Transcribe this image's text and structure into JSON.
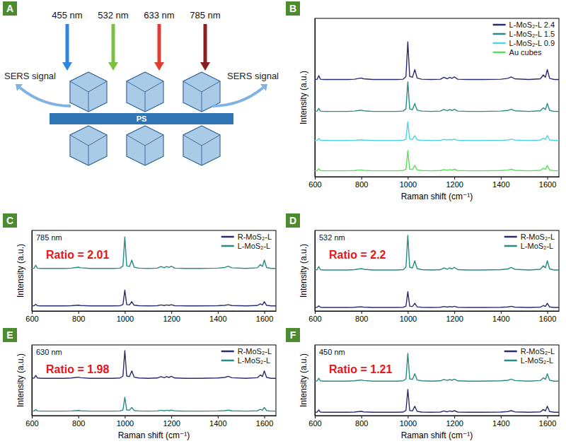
{
  "diagram": {
    "panel": "A",
    "wavelengths": [
      "455 nm",
      "532 nm",
      "633 nm",
      "785 nm"
    ],
    "signal_labels": [
      "SERS signal",
      "SERS signal"
    ],
    "substrate": "PS"
  },
  "chart_data": [
    {
      "type": "line",
      "panel": "B",
      "x_label": "Raman shift (cm⁻¹)",
      "y_label": "Intensity (a.u.)",
      "x": [
        600,
        610,
        617,
        624,
        640,
        660,
        700,
        740,
        770,
        790,
        800,
        810,
        850,
        900,
        950,
        980,
        992,
        1000,
        1008,
        1020,
        1030,
        1040,
        1060,
        1100,
        1140,
        1155,
        1170,
        1180,
        1190,
        1200,
        1215,
        1260,
        1320,
        1400,
        1430,
        1445,
        1460,
        1520,
        1570,
        1583,
        1592,
        1600,
        1610,
        1630,
        1650
      ],
      "xlim": [
        600,
        1650
      ],
      "xticks": [
        600,
        800,
        1000,
        1200,
        1400,
        1600
      ],
      "ylim": [
        0,
        115
      ],
      "tick_labels": "x",
      "legend": "upper right",
      "series": [
        {
          "name": "L-MoS₂-L 2.4",
          "color": "#2b2c6e",
          "values": [
            70.6,
            70.8,
            73.4,
            70.8,
            70.6,
            70.6,
            70.6,
            70.6,
            70.8,
            71.4,
            71.7,
            71.1,
            70.6,
            70.6,
            70.6,
            70.8,
            72.8,
            98,
            72.8,
            72.2,
            77.8,
            71.7,
            70.8,
            70.6,
            70.8,
            72.2,
            71.1,
            72.2,
            71.4,
            72.5,
            70.8,
            70.6,
            70.6,
            70.8,
            71.4,
            72.5,
            71.1,
            70.6,
            71.1,
            73.9,
            72.2,
            77.8,
            71.4,
            70.6,
            70.6
          ]
        },
        {
          "name": "L-MoS₂-L 1.5",
          "color": "#2a8a84",
          "values": [
            47.4,
            47.7,
            49.6,
            47.7,
            47.4,
            47.4,
            47.4,
            47.4,
            47.7,
            48.1,
            48.3,
            47.9,
            47.4,
            47.4,
            47.4,
            47.7,
            49.2,
            69,
            49.2,
            48.8,
            53.2,
            48.3,
            47.7,
            47.4,
            47.7,
            48.8,
            47.9,
            48.8,
            48.1,
            49,
            47.7,
            47.4,
            47.4,
            47.7,
            48.1,
            49,
            47.9,
            47.4,
            47.9,
            50.1,
            48.8,
            53.2,
            48.1,
            47.4,
            47.4
          ]
        },
        {
          "name": "L-MoS₂-L 0.9",
          "color": "#4fd3ea",
          "values": [
            26.3,
            26.4,
            27.7,
            26.4,
            26.3,
            26.3,
            26.3,
            26.3,
            26.4,
            26.7,
            26.8,
            26.6,
            26.3,
            26.3,
            26.3,
            26.4,
            27.4,
            40,
            27.4,
            27.1,
            29.9,
            26.8,
            26.4,
            26.3,
            26.4,
            27.1,
            26.6,
            27.1,
            26.7,
            27.3,
            26.4,
            26.3,
            26.3,
            26.4,
            26.7,
            27.3,
            26.6,
            26.3,
            26.6,
            28,
            27.1,
            29.9,
            26.7,
            26.3,
            26.3
          ]
        },
        {
          "name": "Au cubes",
          "color": "#57e05a",
          "values": [
            4.3,
            4.5,
            5.8,
            4.5,
            4.3,
            4.3,
            4.3,
            4.3,
            4.5,
            4.8,
            4.9,
            4.6,
            4.3,
            4.3,
            4.3,
            4.5,
            5.5,
            19,
            5.5,
            5.2,
            8.2,
            4.9,
            4.5,
            4.3,
            4.5,
            5.2,
            4.6,
            5.2,
            4.8,
            5.4,
            4.5,
            4.3,
            4.3,
            4.5,
            4.8,
            5.4,
            4.6,
            4.3,
            4.6,
            6.1,
            5.2,
            8.2,
            4.8,
            4.3,
            4.3
          ]
        }
      ]
    },
    {
      "type": "line",
      "panel": "C",
      "y_label": "Intensity (a.u.)",
      "x": [
        600,
        610,
        617,
        624,
        640,
        660,
        700,
        740,
        770,
        790,
        800,
        810,
        850,
        900,
        950,
        980,
        992,
        1000,
        1008,
        1020,
        1030,
        1040,
        1060,
        1100,
        1140,
        1155,
        1170,
        1180,
        1190,
        1200,
        1215,
        1260,
        1320,
        1400,
        1430,
        1445,
        1460,
        1520,
        1570,
        1583,
        1592,
        1600,
        1610,
        1630,
        1650
      ],
      "xlim": [
        600,
        1650
      ],
      "xticks": [
        600,
        800,
        1000,
        1200,
        1400,
        1600
      ],
      "ylim": [
        0,
        100
      ],
      "tick_labels": "x",
      "legend": "upper right",
      "annotations": [
        {
          "text": "785 nm"
        },
        {
          "text": "Ratio = 2.01",
          "color": "#e8141b"
        }
      ],
      "series": [
        {
          "name": "R-MoS₂-L",
          "color": "#2b2c6e",
          "values": [
            6.4,
            6.6,
            8.4,
            6.6,
            6.4,
            6.4,
            6.4,
            6.4,
            6.6,
            7,
            7.2,
            6.8,
            6.4,
            6.4,
            6.4,
            6.6,
            8,
            26,
            8,
            7.6,
            11.6,
            7.2,
            6.6,
            6.4,
            6.6,
            7.6,
            6.8,
            7.6,
            7,
            7.8,
            6.6,
            6.4,
            6.4,
            6.6,
            7,
            7.8,
            6.8,
            6.4,
            6.8,
            8.8,
            7.6,
            11.6,
            7,
            6.4,
            6.4
          ]
        },
        {
          "name": "L-MoS₂-L",
          "color": "#2a8a84",
          "values": [
            52.8,
            53.2,
            56.8,
            53.2,
            52.8,
            52.8,
            52.8,
            52.8,
            53.2,
            54,
            54.4,
            53.6,
            52.8,
            52.8,
            52.8,
            53.2,
            56,
            92,
            56,
            55.2,
            63.2,
            54.4,
            53.2,
            52.8,
            53.2,
            55.2,
            53.6,
            55.2,
            54,
            55.6,
            53.2,
            52.8,
            52.8,
            53.2,
            54,
            55.6,
            53.6,
            52.8,
            53.6,
            57.6,
            55.2,
            63.2,
            54,
            52.8,
            52.8
          ]
        }
      ]
    },
    {
      "type": "line",
      "panel": "D",
      "y_label": "Intensity (a.u.)",
      "x": [
        600,
        610,
        617,
        624,
        640,
        660,
        700,
        740,
        770,
        790,
        800,
        810,
        850,
        900,
        950,
        980,
        992,
        1000,
        1008,
        1020,
        1030,
        1040,
        1060,
        1100,
        1140,
        1155,
        1170,
        1180,
        1190,
        1200,
        1215,
        1260,
        1320,
        1400,
        1430,
        1445,
        1460,
        1520,
        1570,
        1583,
        1592,
        1600,
        1610,
        1630,
        1650
      ],
      "xlim": [
        600,
        1650
      ],
      "xticks": [
        600,
        800,
        1000,
        1200,
        1400,
        1600
      ],
      "ylim": [
        0,
        100
      ],
      "tick_labels": "x",
      "legend": "upper right",
      "annotations": [
        {
          "text": "532 nm"
        },
        {
          "text": "Ratio = 2.2",
          "color": "#e8141b"
        }
      ],
      "series": [
        {
          "name": "R-MoS₂-L",
          "color": "#2b2c6e",
          "values": [
            4.4,
            4.6,
            6.4,
            4.6,
            4.4,
            4.4,
            4.4,
            4.4,
            4.6,
            5,
            5.2,
            4.8,
            4.4,
            4.4,
            4.4,
            4.6,
            6,
            24,
            6,
            5.6,
            9.6,
            5.2,
            4.6,
            4.4,
            4.6,
            5.6,
            4.8,
            5.6,
            5,
            5.8,
            4.6,
            4.4,
            4.4,
            4.6,
            5,
            5.8,
            4.8,
            4.4,
            4.8,
            6.8,
            5.6,
            9.6,
            5,
            4.4,
            4.4
          ]
        },
        {
          "name": "L-MoS₂-L",
          "color": "#2a8a84",
          "values": [
            50.9,
            51.3,
            55.3,
            51.3,
            50.9,
            50.9,
            50.9,
            50.9,
            51.3,
            52.2,
            52.6,
            51.8,
            50.9,
            50.9,
            50.9,
            51.3,
            54.4,
            94,
            54.4,
            53.5,
            62.3,
            52.6,
            51.3,
            50.9,
            51.3,
            53.5,
            51.8,
            53.5,
            52.2,
            54,
            51.3,
            50.9,
            50.9,
            51.3,
            52.2,
            54,
            51.8,
            50.9,
            51.8,
            56.2,
            53.5,
            62.3,
            52.2,
            50.9,
            50.9
          ]
        }
      ]
    },
    {
      "type": "line",
      "panel": "E",
      "x_label": "Raman shift (cm⁻¹)",
      "y_label": "Intensity (a.u.)",
      "x": [
        600,
        610,
        617,
        624,
        640,
        660,
        700,
        740,
        770,
        790,
        800,
        810,
        850,
        900,
        950,
        980,
        992,
        1000,
        1008,
        1020,
        1030,
        1040,
        1060,
        1100,
        1140,
        1155,
        1170,
        1180,
        1190,
        1200,
        1215,
        1260,
        1320,
        1400,
        1430,
        1445,
        1460,
        1520,
        1570,
        1583,
        1592,
        1600,
        1610,
        1630,
        1650
      ],
      "xlim": [
        600,
        1650
      ],
      "xticks": [
        600,
        800,
        1000,
        1200,
        1400,
        1600
      ],
      "ylim": [
        0,
        100
      ],
      "tick_labels": "x",
      "legend": "upper right",
      "annotations": [
        {
          "text": "630 nm"
        },
        {
          "text": "Ratio = 1.98",
          "color": "#e8141b"
        }
      ],
      "series": [
        {
          "name": "R-MoS₂-L",
          "color": "#2b2c6e",
          "values": [
            52.8,
            53.2,
            56.8,
            53.2,
            52.8,
            52.8,
            52.8,
            52.8,
            53.2,
            54,
            54.4,
            53.6,
            52.8,
            52.8,
            52.8,
            53.2,
            56,
            92,
            56,
            55.2,
            63.2,
            54.4,
            53.2,
            52.8,
            53.2,
            55.2,
            53.6,
            55.2,
            54,
            55.6,
            53.2,
            52.8,
            52.8,
            53.2,
            54,
            55.6,
            53.6,
            52.8,
            53.6,
            57.6,
            55.2,
            63.2,
            54,
            52.8,
            52.8
          ]
        },
        {
          "name": "L-MoS₂-L",
          "color": "#2a8a84",
          "values": [
            6.4,
            6.6,
            8.4,
            6.6,
            6.4,
            6.4,
            6.4,
            6.4,
            6.6,
            7,
            7.2,
            6.8,
            6.4,
            6.4,
            6.4,
            6.6,
            8,
            26,
            8,
            7.6,
            11.6,
            7.2,
            6.6,
            6.4,
            6.6,
            7.6,
            6.8,
            7.6,
            7,
            7.8,
            6.6,
            6.4,
            6.4,
            6.6,
            7,
            7.8,
            6.8,
            6.4,
            6.8,
            8.8,
            7.6,
            11.6,
            7,
            6.4,
            6.4
          ]
        }
      ]
    },
    {
      "type": "line",
      "panel": "F",
      "x_label": "Raman shift (cm⁻¹)",
      "y_label": "Intensity (a.u.)",
      "x": [
        600,
        610,
        617,
        624,
        640,
        660,
        700,
        740,
        770,
        790,
        800,
        810,
        850,
        900,
        950,
        980,
        992,
        1000,
        1008,
        1020,
        1030,
        1040,
        1060,
        1100,
        1140,
        1155,
        1170,
        1180,
        1190,
        1200,
        1215,
        1260,
        1320,
        1400,
        1430,
        1445,
        1460,
        1520,
        1570,
        1583,
        1592,
        1600,
        1610,
        1630,
        1650
      ],
      "xlim": [
        600,
        1650
      ],
      "xticks": [
        600,
        800,
        1000,
        1200,
        1400,
        1600
      ],
      "ylim": [
        0,
        100
      ],
      "tick_labels": "x",
      "legend": "upper right",
      "annotations": [
        {
          "text": "450 nm"
        },
        {
          "text": "Ratio = 1.21",
          "color": "#e8141b"
        }
      ],
      "series": [
        {
          "name": "R-MoS₂-L",
          "color": "#2b2c6e",
          "values": [
            4.7,
            5,
            8,
            5,
            4.7,
            4.7,
            4.7,
            4.7,
            5,
            5.7,
            6,
            5.3,
            4.7,
            4.7,
            4.7,
            5,
            7.3,
            37,
            7.3,
            6.6,
            13.2,
            6,
            5,
            4.7,
            5,
            6.6,
            5.3,
            6.6,
            5.7,
            7,
            5,
            4.7,
            4.7,
            5,
            5.7,
            7,
            5.3,
            4.7,
            5.3,
            8.6,
            6.6,
            13.2,
            5.7,
            4.7,
            4.7
          ]
        },
        {
          "name": "L-MoS₂-L",
          "color": "#2a8a84",
          "values": [
            48.8,
            49.2,
            52.8,
            49.2,
            48.8,
            48.8,
            48.8,
            48.8,
            49.2,
            50,
            50.4,
            49.6,
            48.8,
            48.8,
            48.8,
            49.2,
            52,
            88,
            52,
            51.2,
            59.2,
            50.4,
            49.2,
            48.8,
            49.2,
            51.2,
            49.6,
            51.2,
            50,
            51.6,
            49.2,
            48.8,
            48.8,
            49.2,
            50,
            51.6,
            49.6,
            48.8,
            49.6,
            53.6,
            51.2,
            59.2,
            50,
            48.8,
            48.8
          ]
        }
      ]
    }
  ]
}
